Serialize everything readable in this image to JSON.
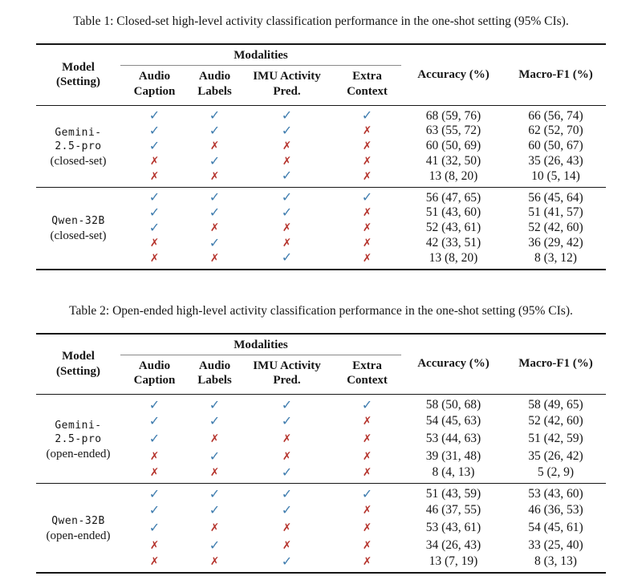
{
  "colors": {
    "check": "#3e7cae",
    "cross": "#b5332c",
    "rule": "#161616",
    "cmidrule": "#8a8a8a",
    "text": "#161616"
  },
  "symbols": {
    "check": "✓",
    "cross": "✗"
  },
  "tables": [
    {
      "caption": "Table 1: Closed-set high-level activity classification performance in the one-shot setting (95% CIs).",
      "header": {
        "model_lines": [
          "Model",
          "(Setting)"
        ],
        "modalities_label": "Modalities",
        "modality_columns": [
          [
            "Audio",
            "Caption"
          ],
          [
            "Audio",
            "Labels"
          ],
          [
            "IMU Activity",
            "Pred."
          ],
          [
            "Extra",
            "Context"
          ]
        ],
        "accuracy_label": "Accuracy (%)",
        "macro_f1_label": "Macro-F1 (%)"
      },
      "groups": [
        {
          "model_lines": [
            "Gemini-",
            "2.5-pro"
          ],
          "setting": "(closed-set)",
          "rows": [
            {
              "modalities": [
                "check",
                "check",
                "check",
                "check"
              ],
              "accuracy": "68 (59, 76)",
              "macro_f1": "66 (56, 74)"
            },
            {
              "modalities": [
                "check",
                "check",
                "check",
                "cross"
              ],
              "accuracy": "63 (55, 72)",
              "macro_f1": "62 (52, 70)"
            },
            {
              "modalities": [
                "check",
                "cross",
                "cross",
                "cross"
              ],
              "accuracy": "60 (50, 69)",
              "macro_f1": "60 (50, 67)"
            },
            {
              "modalities": [
                "cross",
                "check",
                "cross",
                "cross"
              ],
              "accuracy": "41 (32, 50)",
              "macro_f1": "35 (26, 43)"
            },
            {
              "modalities": [
                "cross",
                "cross",
                "check",
                "cross"
              ],
              "accuracy": "13 (8, 20)",
              "macro_f1": "10 (5, 14)"
            }
          ]
        },
        {
          "model_lines": [
            "Qwen-32B"
          ],
          "setting": "(closed-set)",
          "rows": [
            {
              "modalities": [
                "check",
                "check",
                "check",
                "check"
              ],
              "accuracy": "56 (47, 65)",
              "macro_f1": "56 (45, 64)"
            },
            {
              "modalities": [
                "check",
                "check",
                "check",
                "cross"
              ],
              "accuracy": "51 (43, 60)",
              "macro_f1": "51 (41, 57)"
            },
            {
              "modalities": [
                "check",
                "cross",
                "cross",
                "cross"
              ],
              "accuracy": "52 (43, 61)",
              "macro_f1": "52 (42, 60)"
            },
            {
              "modalities": [
                "cross",
                "check",
                "cross",
                "cross"
              ],
              "accuracy": "42 (33, 51)",
              "macro_f1": "36 (29, 42)"
            },
            {
              "modalities": [
                "cross",
                "cross",
                "check",
                "cross"
              ],
              "accuracy": "13 (8, 20)",
              "macro_f1": "8 (3, 12)"
            }
          ]
        }
      ]
    },
    {
      "caption": "Table 2: Open-ended high-level activity classification performance in the one-shot setting (95% CIs).",
      "header": {
        "model_lines": [
          "Model",
          "(Setting)"
        ],
        "modalities_label": "Modalities",
        "modality_columns": [
          [
            "Audio",
            "Caption"
          ],
          [
            "Audio",
            "Labels"
          ],
          [
            "IMU Activity",
            "Pred."
          ],
          [
            "Extra",
            "Context"
          ]
        ],
        "accuracy_label": "Accuracy (%)",
        "macro_f1_label": "Macro-F1 (%)"
      },
      "groups": [
        {
          "model_lines": [
            "Gemini-",
            "2.5-pro"
          ],
          "setting": "(open-ended)",
          "rows": [
            {
              "modalities": [
                "check",
                "check",
                "check",
                "check"
              ],
              "accuracy": "58 (50, 68)",
              "macro_f1": "58 (49, 65)"
            },
            {
              "modalities": [
                "check",
                "check",
                "check",
                "cross"
              ],
              "accuracy": "54 (45, 63)",
              "macro_f1": "52 (42, 60)"
            },
            {
              "modalities": [
                "check",
                "cross",
                "cross",
                "cross"
              ],
              "accuracy": "53 (44, 63)",
              "macro_f1": "51 (42, 59)"
            },
            {
              "modalities": [
                "cross",
                "check",
                "cross",
                "cross"
              ],
              "accuracy": "39 (31, 48)",
              "macro_f1": "35 (26, 42)"
            },
            {
              "modalities": [
                "cross",
                "cross",
                "check",
                "cross"
              ],
              "accuracy": "8 (4, 13)",
              "macro_f1": "5 (2, 9)"
            }
          ]
        },
        {
          "model_lines": [
            "Qwen-32B"
          ],
          "setting": "(open-ended)",
          "rows": [
            {
              "modalities": [
                "check",
                "check",
                "check",
                "check"
              ],
              "accuracy": "51 (43, 59)",
              "macro_f1": "53 (43, 60)"
            },
            {
              "modalities": [
                "check",
                "check",
                "check",
                "cross"
              ],
              "accuracy": "46 (37, 55)",
              "macro_f1": "46 (36, 53)"
            },
            {
              "modalities": [
                "check",
                "cross",
                "cross",
                "cross"
              ],
              "accuracy": "53 (43, 61)",
              "macro_f1": "54 (45, 61)"
            },
            {
              "modalities": [
                "cross",
                "check",
                "cross",
                "cross"
              ],
              "accuracy": "34 (26, 43)",
              "macro_f1": "33 (25, 40)"
            },
            {
              "modalities": [
                "cross",
                "cross",
                "check",
                "cross"
              ],
              "accuracy": "13 (7, 19)",
              "macro_f1": "8 (3, 13)"
            }
          ]
        }
      ]
    }
  ]
}
